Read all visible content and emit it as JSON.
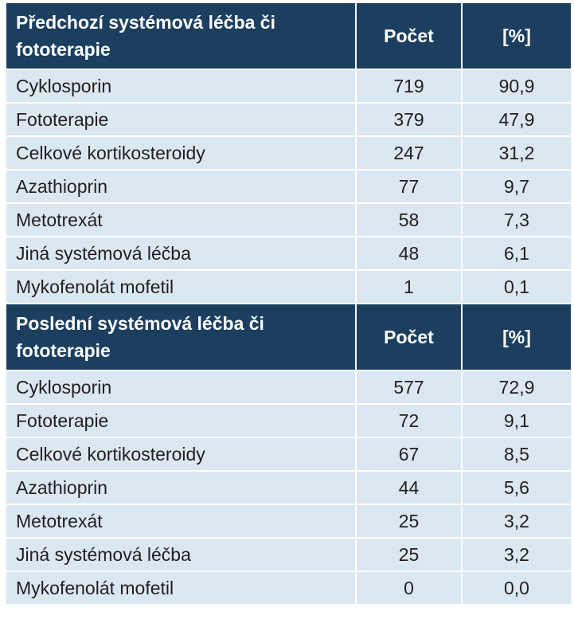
{
  "sections": [
    {
      "header": {
        "title": "Předchozí systémová léčba či fototerapie",
        "count": "Počet",
        "percent": "[%]"
      },
      "rows": [
        [
          "Cyklosporin",
          "719",
          "90,9"
        ],
        [
          "Fototerapie",
          "379",
          "47,9"
        ],
        [
          "Celkové kortikosteroidy",
          "247",
          "31,2"
        ],
        [
          "Azathioprin",
          "77",
          "9,7"
        ],
        [
          "Metotrexát",
          "58",
          "7,3"
        ],
        [
          "Jiná systémová léčba",
          "48",
          "6,1"
        ],
        [
          "Mykofenolát mofetil",
          "1",
          "0,1"
        ]
      ]
    },
    {
      "header": {
        "title": "Poslední systémová léčba či fototerapie",
        "count": "Počet",
        "percent": "[%]"
      },
      "rows": [
        [
          "Cyklosporin",
          "577",
          "72,9"
        ],
        [
          "Fototerapie",
          "72",
          "9,1"
        ],
        [
          "Celkové kortikosteroidy",
          "67",
          "8,5"
        ],
        [
          "Azathioprin",
          "44",
          "5,6"
        ],
        [
          "Metotrexát",
          "25",
          "3,2"
        ],
        [
          "Jiná systémová léčba",
          "25",
          "3,2"
        ],
        [
          "Mykofenolát mofetil",
          "0",
          "0,0"
        ]
      ]
    }
  ]
}
